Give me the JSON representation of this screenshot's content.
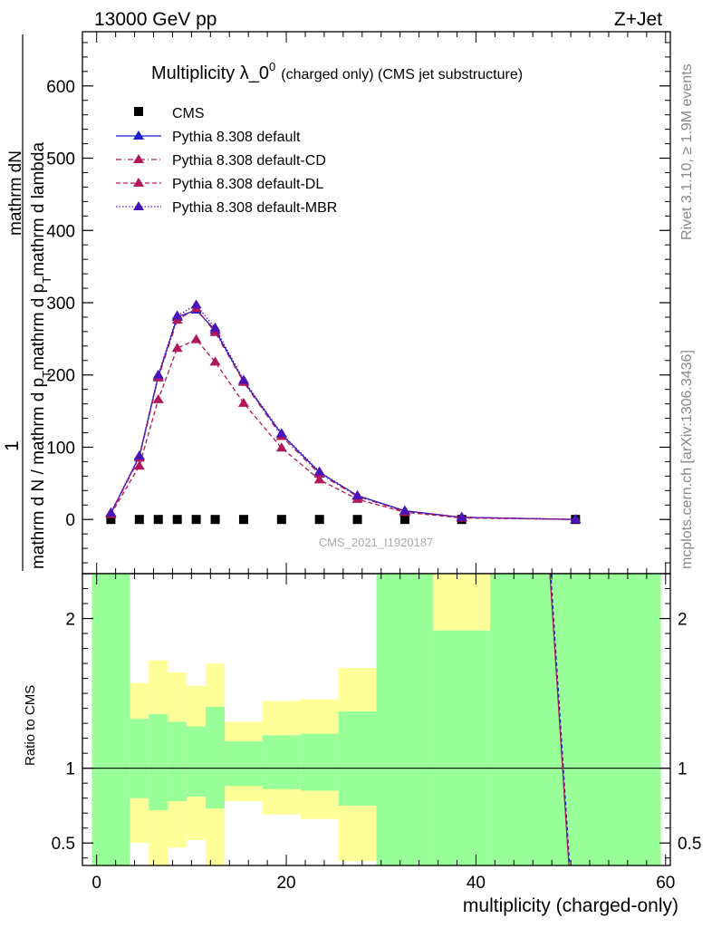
{
  "header": {
    "left": "13000 GeV pp",
    "right": "Z+Jet"
  },
  "side_labels": {
    "rivet": "Rivet 3.1.10, ≥ 1.9M events",
    "mcplots": "mcplots.cern.ch [arXiv:1306.3436]"
  },
  "chart_data": [
    {
      "type": "line",
      "title": "Multiplicity λ_0",
      "title_sup": "0",
      "title_suffix": "(charged only) (CMS jet substructure)",
      "ylabel_num": "1",
      "ylabel_den_top": "mathrm dN",
      "ylabel_den_main": "mathrm d N / mathrm d p",
      "ylabel_den_sub1": "T",
      "ylabel_den_mid": "mathrm d p",
      "ylabel_den_sub2": "T",
      "ylabel_den_end": "mathrm d lambda",
      "ylabel_den_tail": "mathrm d lambda",
      "watermark": "CMS_2021_I1920187",
      "xlim": [
        -1.5,
        60.5
      ],
      "ylim": [
        -75,
        675
      ],
      "yticks": [
        0,
        100,
        200,
        300,
        400,
        500,
        600
      ],
      "legend": [
        "CMS",
        "Pythia 8.308 default",
        "Pythia 8.308 default-CD",
        "Pythia 8.308 default-DL",
        "Pythia 8.308 default-MBR"
      ],
      "series": [
        {
          "name": "CMS",
          "color": "#000000",
          "style": "square",
          "x": [
            1.5,
            4.5,
            6.5,
            8.5,
            10.5,
            12.5,
            15.5,
            19.5,
            23.5,
            27.5,
            32.5,
            38.5,
            50.5
          ],
          "y": [
            0,
            0,
            0,
            0,
            0,
            0,
            0,
            0,
            0,
            0,
            0,
            0,
            0
          ]
        },
        {
          "name": "Pythia 8.308 default",
          "color": "#1c1ccc",
          "style": "solid",
          "x": [
            1.5,
            4.5,
            6.5,
            8.5,
            10.5,
            12.5,
            15.5,
            19.5,
            23.5,
            27.5,
            32.5,
            38.5,
            50.5
          ],
          "y": [
            9,
            87,
            198,
            280,
            290,
            262,
            191,
            118,
            65,
            33,
            12,
            3,
            0
          ]
        },
        {
          "name": "Pythia 8.308 default-CD",
          "color": "#b0185a",
          "style": "dashdot",
          "x": [
            1.5,
            4.5,
            6.5,
            8.5,
            10.5,
            12.5,
            15.5,
            19.5,
            23.5,
            27.5,
            32.5,
            38.5,
            50.5
          ],
          "y": [
            8,
            85,
            196,
            276,
            292,
            259,
            190,
            115,
            63,
            32,
            11,
            3,
            0
          ]
        },
        {
          "name": "Pythia 8.308 default-DL",
          "color": "#b0185a",
          "style": "dashed",
          "x": [
            1.5,
            4.5,
            6.5,
            8.5,
            10.5,
            12.5,
            15.5,
            19.5,
            23.5,
            27.5,
            32.5,
            38.5,
            50.5
          ],
          "y": [
            7,
            74,
            166,
            237,
            249,
            218,
            161,
            99,
            55,
            28,
            10,
            2,
            0
          ]
        },
        {
          "name": "Pythia 8.308 default-MBR",
          "color": "#4a14b8",
          "style": "dotted",
          "x": [
            1.5,
            4.5,
            6.5,
            8.5,
            10.5,
            12.5,
            15.5,
            19.5,
            23.5,
            27.5,
            32.5,
            38.5,
            50.5
          ],
          "y": [
            9,
            88,
            200,
            282,
            297,
            265,
            193,
            119,
            66,
            33,
            12,
            3,
            0
          ]
        }
      ]
    },
    {
      "type": "area",
      "ylabel": "Ratio to CMS",
      "xlabel": "multiplicity (charged-only)",
      "xlim": [
        -1.5,
        60.5
      ],
      "ylim": [
        0.35,
        2.3
      ],
      "xticks": [
        0,
        20,
        40,
        60
      ],
      "yticks": [
        0.5,
        1,
        2
      ],
      "bins": [
        {
          "x0": -0.5,
          "x1": 3.5,
          "g": [
            0.35,
            2.3
          ],
          "y": null
        },
        {
          "x0": 3.5,
          "x1": 5.5,
          "g": [
            0.8,
            1.33
          ],
          "y": [
            0.5,
            1.57
          ]
        },
        {
          "x0": 5.5,
          "x1": 7.5,
          "g": [
            0.72,
            1.36
          ],
          "y": [
            0.35,
            1.72
          ]
        },
        {
          "x0": 7.5,
          "x1": 9.5,
          "g": [
            0.78,
            1.31
          ],
          "y": [
            0.47,
            1.64
          ]
        },
        {
          "x0": 9.5,
          "x1": 11.5,
          "g": [
            0.81,
            1.28
          ],
          "y": [
            0.52,
            1.55
          ]
        },
        {
          "x0": 11.5,
          "x1": 13.5,
          "g": [
            0.73,
            1.41
          ],
          "y": [
            0.35,
            1.7
          ]
        },
        {
          "x0": 13.5,
          "x1": 17.5,
          "g": [
            0.88,
            1.18
          ],
          "y": [
            0.78,
            1.31
          ]
        },
        {
          "x0": 17.5,
          "x1": 21.5,
          "g": [
            0.86,
            1.22
          ],
          "y": [
            0.69,
            1.45
          ]
        },
        {
          "x0": 21.5,
          "x1": 25.5,
          "g": [
            0.85,
            1.23
          ],
          "y": [
            0.66,
            1.46
          ]
        },
        {
          "x0": 25.5,
          "x1": 29.5,
          "g": [
            0.75,
            1.38
          ],
          "y": [
            0.38,
            1.67
          ]
        },
        {
          "x0": 29.5,
          "x1": 35.5,
          "g": [
            0.35,
            2.3
          ],
          "y": null
        },
        {
          "x0": 35.5,
          "x1": 41.5,
          "g": [
            0.35,
            1.92
          ],
          "y": [
            1.92,
            2.3
          ]
        },
        {
          "x0": 41.5,
          "x1": 59.5,
          "g": [
            0.35,
            2.3
          ],
          "y": null
        }
      ],
      "series_line": {
        "x": [
          47.8,
          49.8
        ],
        "y": [
          2.3,
          0.35
        ]
      }
    }
  ]
}
